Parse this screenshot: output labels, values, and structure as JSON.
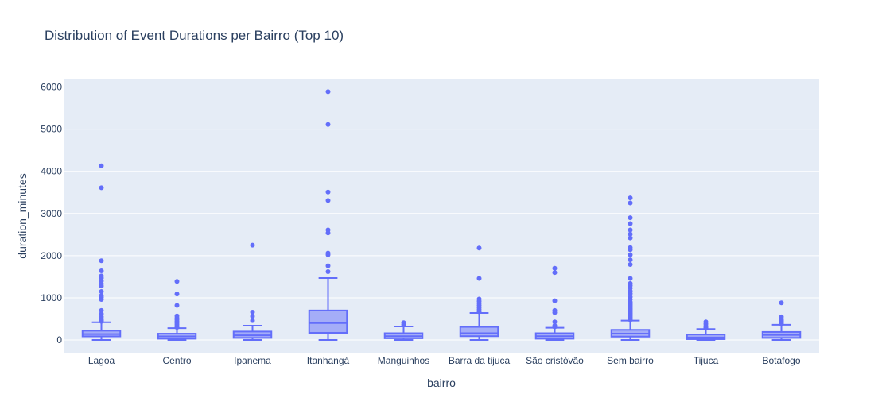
{
  "chart_data": {
    "type": "box",
    "title": "Distribution of Event Durations per Bairro (Top 10)",
    "xlabel": "bairro",
    "ylabel": "duration_minutes",
    "ylim": [
      -320,
      6180
    ],
    "yticks": [
      0,
      1000,
      2000,
      3000,
      4000,
      5000,
      6000
    ],
    "grid": true,
    "colors": {
      "box": "#636efa",
      "box_fill": "rgba(99,110,250,0.5)",
      "plot_bg": "#e5ecf6",
      "grid": "#ffffff",
      "text": "#2a3f5f"
    },
    "categories": [
      "Lagoa",
      "Centro",
      "Ipanema",
      "Itanhangá",
      "Manguinhos",
      "Barra da tijuca",
      "São cristóvão",
      "Sem bairro",
      "Tijuca",
      "Botafogo"
    ],
    "boxes": [
      {
        "category": "Lagoa",
        "min": 0,
        "q1": 85,
        "median": 140,
        "q3": 220,
        "upperfence": 420,
        "outliers": [
          440,
          470,
          500,
          550,
          620,
          700,
          960,
          1010,
          1050,
          1150,
          1280,
          1330,
          1400,
          1470,
          1520,
          1640,
          1880,
          3610,
          4130
        ]
      },
      {
        "category": "Centro",
        "min": 0,
        "q1": 30,
        "median": 85,
        "q3": 150,
        "upperfence": 280,
        "outliers": [
          300,
          330,
          370,
          410,
          440,
          480,
          520,
          570,
          820,
          1090,
          1390
        ]
      },
      {
        "category": "Ipanema",
        "min": 0,
        "q1": 50,
        "median": 110,
        "q3": 200,
        "upperfence": 340,
        "outliers": [
          460,
          560,
          660,
          2250
        ]
      },
      {
        "category": "Itanhangá",
        "min": 0,
        "q1": 170,
        "median": 400,
        "q3": 700,
        "upperfence": 1470,
        "outliers": [
          1620,
          1760,
          2020,
          2060,
          2540,
          2610,
          3310,
          3510,
          5110,
          5890
        ]
      },
      {
        "category": "Manguinhos",
        "min": 0,
        "q1": 40,
        "median": 90,
        "q3": 160,
        "upperfence": 320,
        "outliers": [
          360,
          410
        ]
      },
      {
        "category": "Barra da tijuca",
        "min": 0,
        "q1": 90,
        "median": 160,
        "q3": 310,
        "upperfence": 640,
        "outliers": [
          670,
          720,
          770,
          820,
          870,
          920,
          970,
          1460,
          2180
        ]
      },
      {
        "category": "São cristóvão",
        "min": 0,
        "q1": 30,
        "median": 90,
        "q3": 160,
        "upperfence": 290,
        "outliers": [
          310,
          340,
          430,
          650,
          700,
          930,
          1600,
          1700
        ]
      },
      {
        "category": "Sem bairro",
        "min": 0,
        "q1": 80,
        "median": 150,
        "q3": 240,
        "upperfence": 460,
        "outliers": [
          480,
          510,
          540,
          570,
          600,
          630,
          660,
          690,
          720,
          750,
          780,
          810,
          840,
          870,
          900,
          960,
          1020,
          1100,
          1160,
          1230,
          1290,
          1340,
          1460,
          1790,
          1900,
          2020,
          2140,
          2190,
          2420,
          2510,
          2610,
          2760,
          2900,
          3250,
          3370
        ]
      },
      {
        "category": "Tijuca",
        "min": 0,
        "q1": 20,
        "median": 60,
        "q3": 130,
        "upperfence": 260,
        "outliers": [
          280,
          300,
          330,
          380,
          430
        ]
      },
      {
        "category": "Botafogo",
        "min": 0,
        "q1": 50,
        "median": 120,
        "q3": 190,
        "upperfence": 360,
        "outliers": [
          380,
          410,
          440,
          470,
          500,
          550,
          880
        ]
      }
    ]
  }
}
